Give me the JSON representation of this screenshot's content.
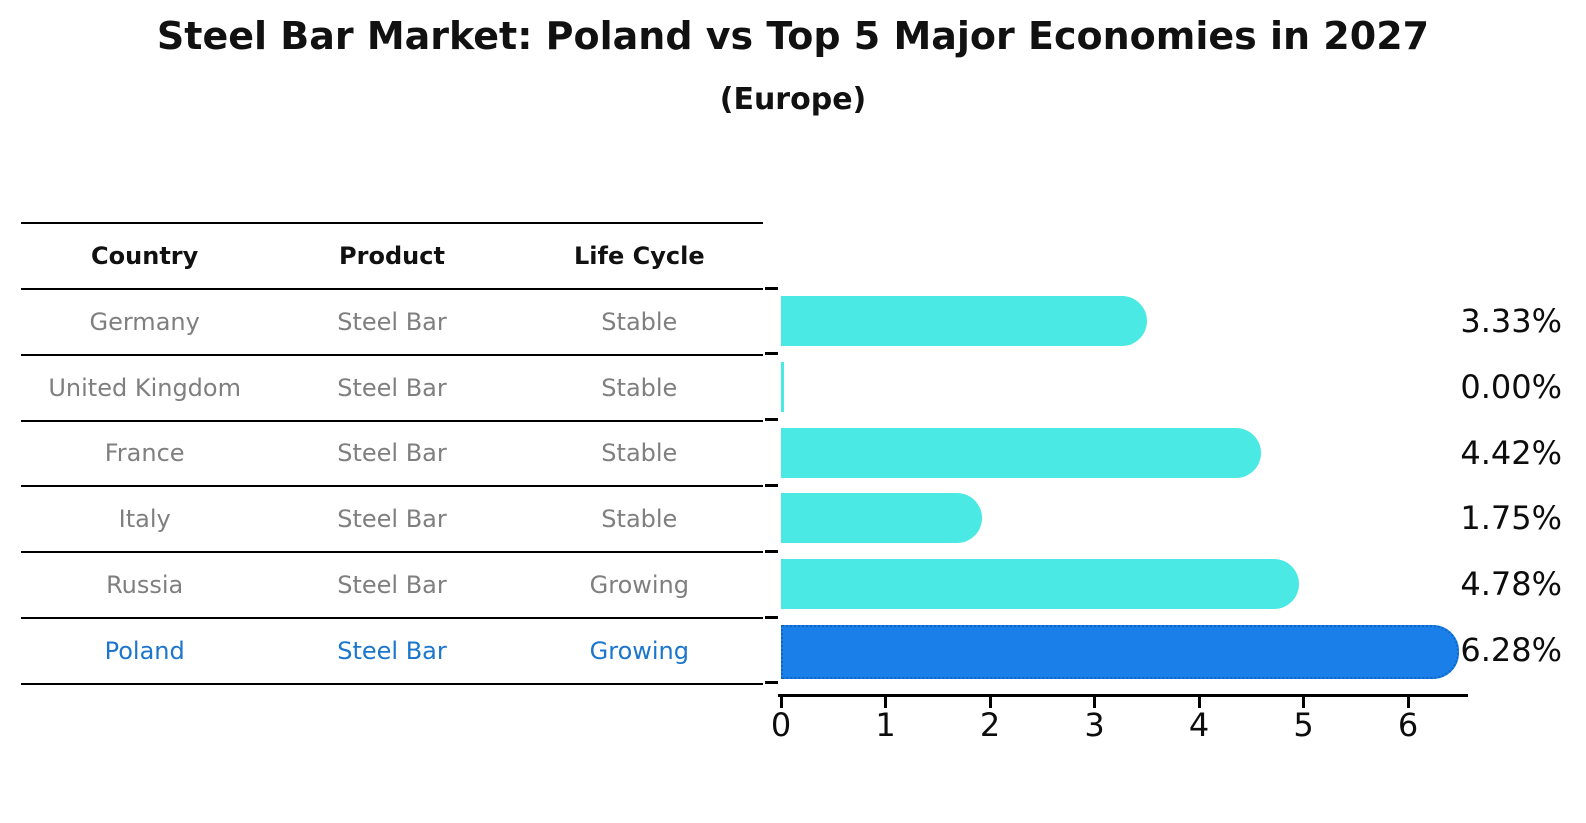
{
  "title": "Steel Bar Market: Poland vs Top 5 Major Economies in 2027",
  "subtitle": "(Europe)",
  "table": {
    "headers": [
      "Country",
      "Product",
      "Life Cycle"
    ],
    "rows": [
      {
        "country": "Germany",
        "product": "Steel Bar",
        "life_cycle": "Stable",
        "highlight": false
      },
      {
        "country": "United Kingdom",
        "product": "Steel Bar",
        "life_cycle": "Stable",
        "highlight": false
      },
      {
        "country": "France",
        "product": "Steel Bar",
        "life_cycle": "Stable",
        "highlight": false
      },
      {
        "country": "Italy",
        "product": "Steel Bar",
        "life_cycle": "Stable",
        "highlight": false
      },
      {
        "country": "Russia",
        "product": "Steel Bar",
        "life_cycle": "Growing",
        "highlight": false
      },
      {
        "country": "Poland",
        "product": "Steel Bar",
        "life_cycle": "Growing",
        "highlight": true
      }
    ]
  },
  "chart_data": {
    "type": "bar",
    "orientation": "horizontal",
    "title": "Steel Bar Market: Poland vs Top 5 Major Economies in 2027",
    "subtitle": "(Europe)",
    "categories": [
      "Germany",
      "United Kingdom",
      "France",
      "Italy",
      "Russia",
      "Poland"
    ],
    "values": [
      3.33,
      0.0,
      4.42,
      1.75,
      4.78,
      6.28
    ],
    "value_labels": [
      "3.33%",
      "0.00%",
      "4.42%",
      "1.75%",
      "4.78%",
      "6.28%"
    ],
    "x_ticks": [
      0,
      1,
      2,
      3,
      4,
      5,
      6
    ],
    "xlim": [
      0,
      6.6
    ],
    "grid": false,
    "legend": false,
    "highlight_index": 5,
    "bar_color": "#4be9e3",
    "highlight_bar_color": "#1a7fe8",
    "highlight_bar_border_color": "#0d66c8",
    "highlight_text_color": "#1b76cc",
    "row_text_color": "#7f7f7f"
  }
}
